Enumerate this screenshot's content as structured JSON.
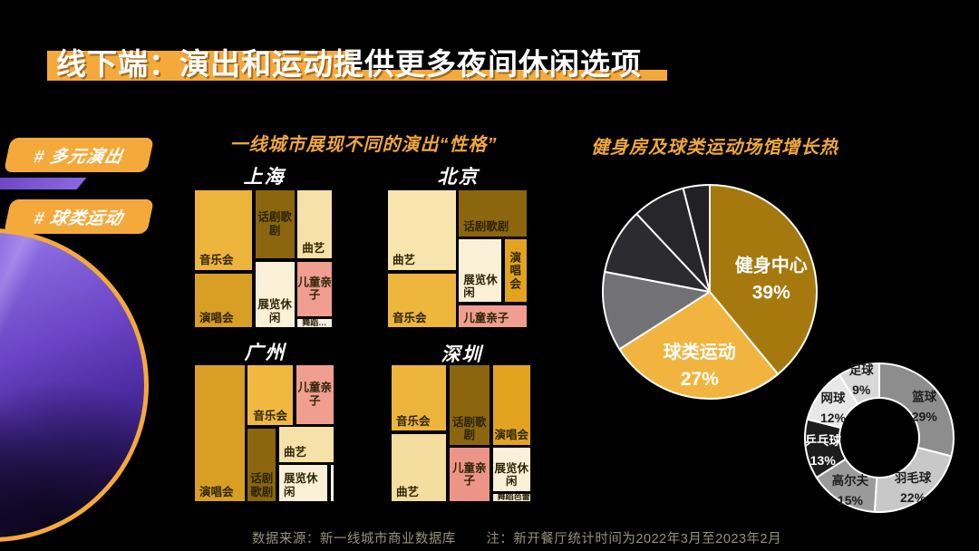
{
  "slide": {
    "title": "线下端：演出和运动提供更多夜间休闲选项",
    "badges": [
      "# 多元演出",
      "# 球类运动"
    ],
    "left_heading": "一线城市展现不同的演出“性格”",
    "right_heading": "健身房及球类运动场馆增长热",
    "footer_source": "数据来源：新一线城市商业数据库",
    "footer_note": "注：新开餐厅统计时间为2022年3月至2023年2月",
    "accent_color": "#F5A93B",
    "heading_color": "#F0A73C"
  },
  "chart_data": [
    {
      "type": "treemap",
      "city": "上海",
      "cells": [
        {
          "label": "音乐会",
          "color": "#EDB43C",
          "x": 0,
          "y": 0,
          "w": 0.425,
          "h": 0.585,
          "align": "bl"
        },
        {
          "label": "演唱会",
          "color": "#D99E24",
          "x": 0,
          "y": 0.6,
          "w": 0.425,
          "h": 0.4,
          "align": "bl"
        },
        {
          "label": "话剧歌剧",
          "color": "#8B660F",
          "x": 0.435,
          "y": 0,
          "w": 0.295,
          "h": 0.5,
          "align": "c"
        },
        {
          "label": "展览休闲",
          "color": "#FAF0D8",
          "x": 0.435,
          "y": 0.515,
          "w": 0.295,
          "h": 0.485,
          "align": "bc"
        },
        {
          "label": "曲艺",
          "color": "#F6E1A8",
          "x": 0.74,
          "y": 0,
          "w": 0.26,
          "h": 0.5,
          "align": "bl"
        },
        {
          "label": "儿童亲子",
          "color": "#EF9E8F",
          "x": 0.74,
          "y": 0.515,
          "w": 0.26,
          "h": 0.405,
          "align": "c"
        },
        {
          "label": "舞蹈…",
          "color": "#F6F1E3",
          "x": 0.74,
          "y": 0.93,
          "w": 0.26,
          "h": 0.07,
          "align": "bl",
          "small": true
        }
      ]
    },
    {
      "type": "treemap",
      "city": "北京",
      "cells": [
        {
          "label": "曲艺",
          "color": "#F8E5AE",
          "x": 0,
          "y": 0,
          "w": 0.495,
          "h": 0.585,
          "align": "bl"
        },
        {
          "label": "音乐会",
          "color": "#EEB63C",
          "x": 0,
          "y": 0.6,
          "w": 0.495,
          "h": 0.4,
          "align": "bl"
        },
        {
          "label": "话剧歌剧",
          "color": "#8B660F",
          "x": 0.505,
          "y": 0,
          "w": 0.495,
          "h": 0.345,
          "align": "bl"
        },
        {
          "label": "展览休闲",
          "color": "#FAF0D8",
          "x": 0.505,
          "y": 0.355,
          "w": 0.315,
          "h": 0.465,
          "align": "bl"
        },
        {
          "label": "演唱会",
          "color": "#E2A41F",
          "x": 0.83,
          "y": 0.355,
          "w": 0.17,
          "h": 0.465,
          "align": "c"
        },
        {
          "label": "儿童亲子",
          "color": "#EF9E8F",
          "x": 0.505,
          "y": 0.83,
          "w": 0.495,
          "h": 0.17,
          "align": "bl"
        }
      ]
    },
    {
      "type": "treemap",
      "city": "广州",
      "cells": [
        {
          "label": "演唱会",
          "color": "#D99E24",
          "x": 0,
          "y": 0,
          "w": 0.365,
          "h": 1.0,
          "align": "bl"
        },
        {
          "label": "音乐会",
          "color": "#F0B83E",
          "x": 0.375,
          "y": 0,
          "w": 0.335,
          "h": 0.45,
          "align": "bc"
        },
        {
          "label": "话剧歌剧",
          "color": "#8B660F",
          "x": 0.375,
          "y": 0.46,
          "w": 0.215,
          "h": 0.54,
          "align": "bc"
        },
        {
          "label": "儿童亲子",
          "color": "#EF9E8F",
          "x": 0.72,
          "y": 0,
          "w": 0.28,
          "h": 0.44,
          "align": "c"
        },
        {
          "label": "曲艺",
          "color": "#F6E1A8",
          "x": 0.6,
          "y": 0.45,
          "w": 0.4,
          "h": 0.265,
          "align": "bl"
        },
        {
          "label": "展览休闲",
          "color": "#FAF0D8",
          "x": 0.6,
          "y": 0.725,
          "w": 0.355,
          "h": 0.275,
          "align": "bl"
        },
        {
          "label": "",
          "color": "#FBF5E8",
          "x": 0.965,
          "y": 0.725,
          "w": 0.035,
          "h": 0.275,
          "align": "bl"
        }
      ]
    },
    {
      "type": "treemap",
      "city": "深圳",
      "cells": [
        {
          "label": "音乐会",
          "color": "#EDB43C",
          "x": 0,
          "y": 0,
          "w": 0.4,
          "h": 0.49,
          "align": "bl"
        },
        {
          "label": "曲艺",
          "color": "#F3DD9F",
          "x": 0,
          "y": 0.5,
          "w": 0.4,
          "h": 0.5,
          "align": "bl"
        },
        {
          "label": "话剧歌剧",
          "color": "#8B660F",
          "x": 0.41,
          "y": 0,
          "w": 0.3,
          "h": 0.59,
          "align": "bc"
        },
        {
          "label": "儿童亲子",
          "color": "#ED9488",
          "x": 0.41,
          "y": 0.6,
          "w": 0.3,
          "h": 0.4,
          "align": "c"
        },
        {
          "label": "演唱会",
          "color": "#E2A41F",
          "x": 0.72,
          "y": 0,
          "w": 0.28,
          "h": 0.59,
          "align": "bc"
        },
        {
          "label": "展览休闲",
          "color": "#FAF0D8",
          "x": 0.72,
          "y": 0.6,
          "w": 0.28,
          "h": 0.325,
          "align": "bc"
        },
        {
          "label": "舞蹈芭蕾",
          "color": "#F3EAD2",
          "x": 0.72,
          "y": 0.935,
          "w": 0.28,
          "h": 0.065,
          "align": "bl",
          "small": true
        }
      ]
    },
    {
      "type": "pie",
      "slices": [
        {
          "label": "健身中心",
          "value": 39,
          "color": "#A5790E",
          "label_r": 72,
          "text": "#ffffff"
        },
        {
          "label": "球类运动",
          "value": 27,
          "color": "#F1B53F",
          "label_r": 72,
          "text": "#ffffff"
        },
        {
          "label": "",
          "value": 12,
          "color": "#717176"
        },
        {
          "label": "",
          "value": 10,
          "color": "#2B2B30"
        },
        {
          "label": "",
          "value": 8,
          "color": "#27272B"
        },
        {
          "label": "",
          "value": 4,
          "color": "#222226"
        }
      ]
    },
    {
      "type": "donut",
      "slices": [
        {
          "label": "篮球",
          "value": 29,
          "color": "#8D8D8D",
          "label_r": 63,
          "text": "#1d1d1d"
        },
        {
          "label": "羽毛球",
          "value": 22,
          "color": "#C8C8C8",
          "label_r": 63,
          "text": "#1d1d1d"
        },
        {
          "label": "高尔夫",
          "value": 15,
          "color": "#9A9A9A",
          "label_r": 63,
          "text": "#1d1d1d"
        },
        {
          "label": "乒乓球",
          "value": 13,
          "color": "#1C1C1C",
          "label_r": 63,
          "text": "#ffffff"
        },
        {
          "label": "网球",
          "value": 12,
          "color": "#E8E8E8",
          "label_r": 63,
          "text": "#1d1d1d"
        },
        {
          "label": "足球",
          "value": 9,
          "color": "#D8D8D8",
          "label_r": 71,
          "text": "#1d1d1d"
        }
      ]
    }
  ]
}
